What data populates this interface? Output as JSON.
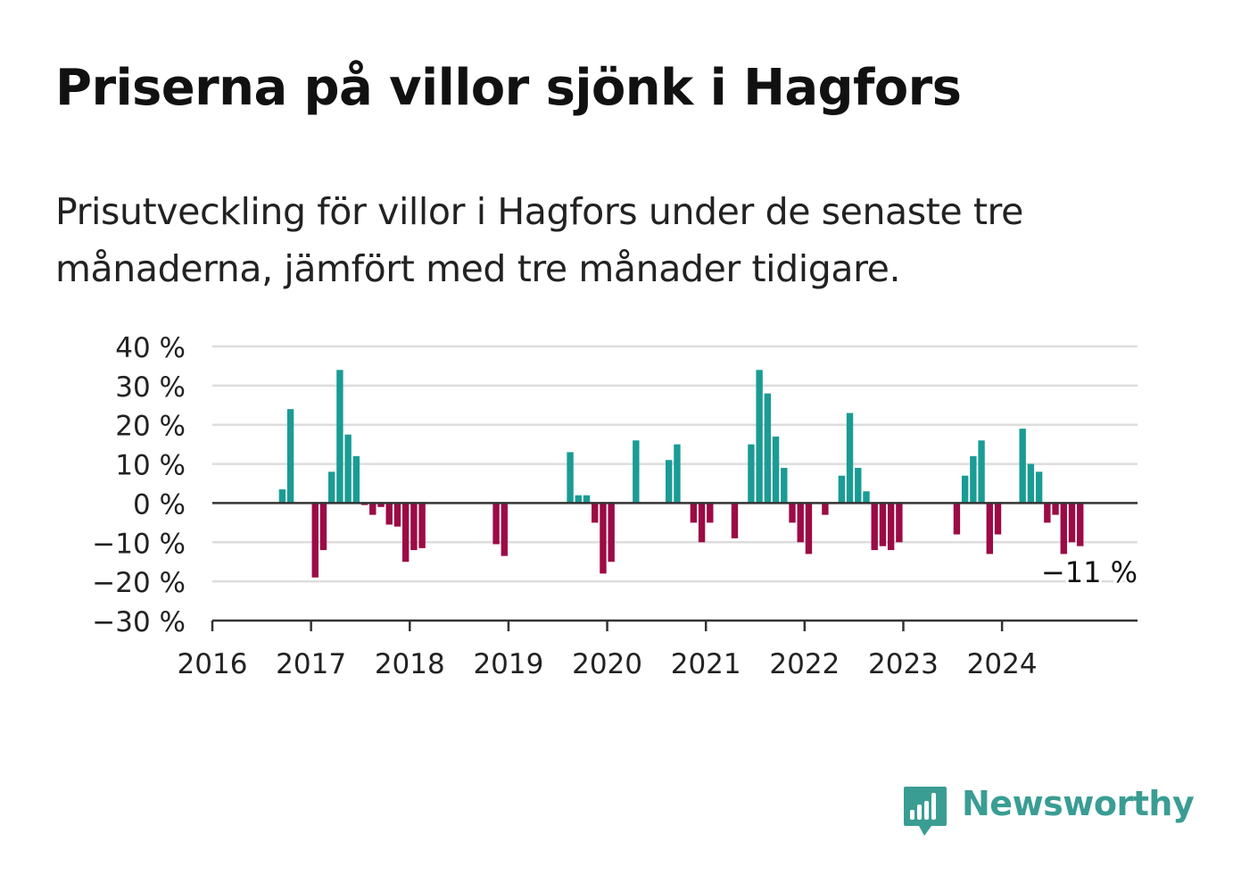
{
  "header": {
    "title": "Priserna på villor sjönk i Hagfors",
    "subtitle_line1": "Prisutveckling för villor i Hagfors under de senaste tre",
    "subtitle_line2": "månaderna, jämfört med tre månader tidigare."
  },
  "brand": {
    "name": "Newsworthy",
    "icon": "bar-chart-speech-bubble-icon",
    "color": "#3a9d94"
  },
  "colors": {
    "positive": "#1a9c95",
    "negative": "#9c0b45",
    "grid": "#dddddd",
    "axis": "#333333",
    "text": "#222222"
  },
  "chart_data": {
    "type": "bar",
    "x_type": "monthly",
    "ylim": [
      -30,
      40
    ],
    "yticks": [
      -30,
      -20,
      -10,
      0,
      10,
      20,
      30,
      40
    ],
    "ytick_labels": [
      "−30 %",
      "−20 %",
      "−10 %",
      "0 %",
      "10 %",
      "20 %",
      "30 %",
      "40 %"
    ],
    "xticks": [
      "2016",
      "2017",
      "2018",
      "2019",
      "2020",
      "2021",
      "2022",
      "2023",
      "2024"
    ],
    "grid": true,
    "legend": "none",
    "last_value_label": "−11 %",
    "series": [
      {
        "points": [
          {
            "month": "2016-09",
            "value": 3.5
          },
          {
            "month": "2016-10",
            "value": 24
          },
          {
            "month": "2017-01",
            "value": -19
          },
          {
            "month": "2017-02",
            "value": -12
          },
          {
            "month": "2017-03",
            "value": 8
          },
          {
            "month": "2017-04",
            "value": 34
          },
          {
            "month": "2017-05",
            "value": 17.5
          },
          {
            "month": "2017-06",
            "value": 12
          },
          {
            "month": "2017-07",
            "value": -0.5
          },
          {
            "month": "2017-08",
            "value": -3
          },
          {
            "month": "2017-09",
            "value": -1
          },
          {
            "month": "2017-10",
            "value": -5.5
          },
          {
            "month": "2017-11",
            "value": -6
          },
          {
            "month": "2017-12",
            "value": -15
          },
          {
            "month": "2018-01",
            "value": -12
          },
          {
            "month": "2018-02",
            "value": -11.5
          },
          {
            "month": "2018-11",
            "value": -10.5
          },
          {
            "month": "2018-12",
            "value": -13.5
          },
          {
            "month": "2019-08",
            "value": 13
          },
          {
            "month": "2019-09",
            "value": 2
          },
          {
            "month": "2019-10",
            "value": 2
          },
          {
            "month": "2019-11",
            "value": -5
          },
          {
            "month": "2019-12",
            "value": -18
          },
          {
            "month": "2020-01",
            "value": -15
          },
          {
            "month": "2020-04",
            "value": 16
          },
          {
            "month": "2020-08",
            "value": 11
          },
          {
            "month": "2020-09",
            "value": 15
          },
          {
            "month": "2020-11",
            "value": -5
          },
          {
            "month": "2020-12",
            "value": -10
          },
          {
            "month": "2021-01",
            "value": -5
          },
          {
            "month": "2021-04",
            "value": -9
          },
          {
            "month": "2021-06",
            "value": 15
          },
          {
            "month": "2021-07",
            "value": 34
          },
          {
            "month": "2021-08",
            "value": 28
          },
          {
            "month": "2021-09",
            "value": 17
          },
          {
            "month": "2021-10",
            "value": 9
          },
          {
            "month": "2021-11",
            "value": -5
          },
          {
            "month": "2021-12",
            "value": -10
          },
          {
            "month": "2022-01",
            "value": -13
          },
          {
            "month": "2022-03",
            "value": -3
          },
          {
            "month": "2022-05",
            "value": 7
          },
          {
            "month": "2022-06",
            "value": 23
          },
          {
            "month": "2022-07",
            "value": 9
          },
          {
            "month": "2022-08",
            "value": 3
          },
          {
            "month": "2022-09",
            "value": -12
          },
          {
            "month": "2022-10",
            "value": -11
          },
          {
            "month": "2022-11",
            "value": -12
          },
          {
            "month": "2022-12",
            "value": -10
          },
          {
            "month": "2023-07",
            "value": -8
          },
          {
            "month": "2023-08",
            "value": 7
          },
          {
            "month": "2023-09",
            "value": 12
          },
          {
            "month": "2023-10",
            "value": 16
          },
          {
            "month": "2023-11",
            "value": -13
          },
          {
            "month": "2023-12",
            "value": -8
          },
          {
            "month": "2024-03",
            "value": 19
          },
          {
            "month": "2024-04",
            "value": 10
          },
          {
            "month": "2024-05",
            "value": 8
          },
          {
            "month": "2024-06",
            "value": -5
          },
          {
            "month": "2024-07",
            "value": -3
          },
          {
            "month": "2024-08",
            "value": -13
          },
          {
            "month": "2024-09",
            "value": -10
          },
          {
            "month": "2024-10",
            "value": -11
          }
        ]
      }
    ]
  }
}
